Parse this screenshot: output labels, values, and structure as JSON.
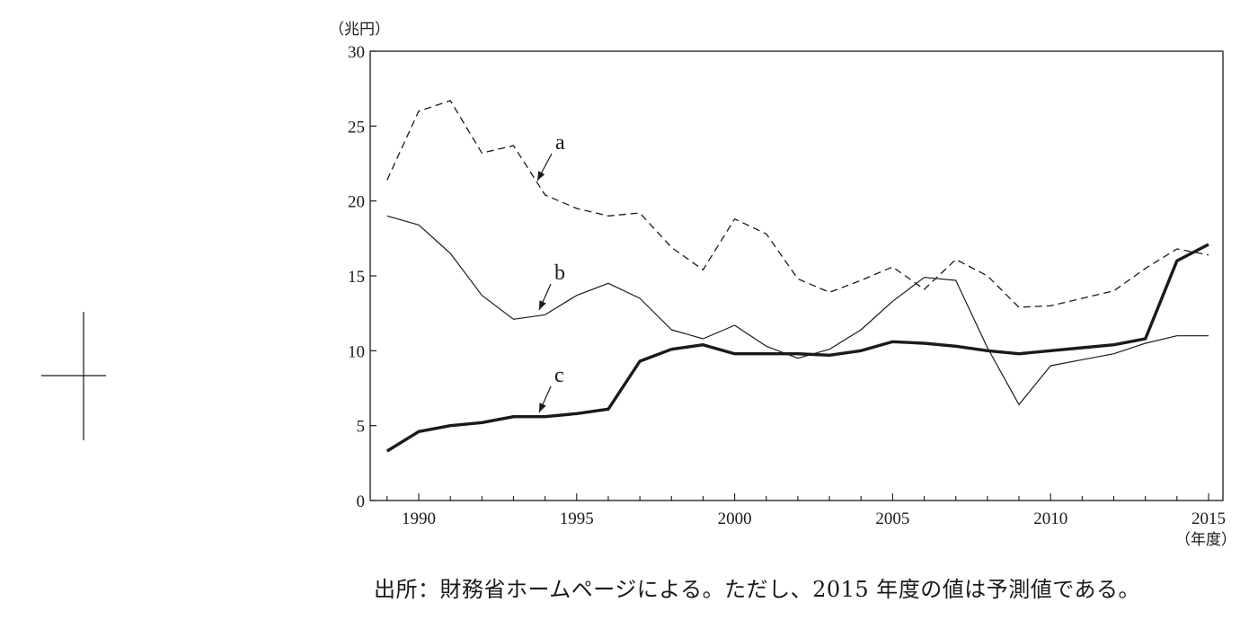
{
  "chart_data": {
    "type": "line",
    "y_unit": "（兆円）",
    "x_unit": "（年度）",
    "x_ticks": [
      1990,
      1995,
      2000,
      2005,
      2010,
      2015
    ],
    "y_ticks": [
      0,
      5,
      10,
      15,
      20,
      25,
      30
    ],
    "xlim": [
      1988.5,
      2015.5
    ],
    "ylim": [
      0,
      30
    ],
    "grid": false,
    "series": [
      {
        "name": "a",
        "style": "dashed",
        "x": [
          1989,
          1990,
          1991,
          1992,
          1993,
          1994,
          1995,
          1996,
          1997,
          1998,
          1999,
          2000,
          2001,
          2002,
          2003,
          2004,
          2005,
          2006,
          2007,
          2008,
          2009,
          2010,
          2011,
          2012,
          2013,
          2014,
          2015
        ],
        "values": [
          21.4,
          26.0,
          26.7,
          23.2,
          23.7,
          20.4,
          19.5,
          19.0,
          19.2,
          16.9,
          15.4,
          18.8,
          17.8,
          14.8,
          13.9,
          14.7,
          15.6,
          14.1,
          16.1,
          15.0,
          12.9,
          13.0,
          13.5,
          14.0,
          15.5,
          16.8,
          16.4
        ]
      },
      {
        "name": "b",
        "style": "thin",
        "x": [
          1989,
          1990,
          1991,
          1992,
          1993,
          1994,
          1995,
          1996,
          1997,
          1998,
          1999,
          2000,
          2001,
          2002,
          2003,
          2004,
          2005,
          2006,
          2007,
          2008,
          2009,
          2010,
          2011,
          2012,
          2013,
          2014,
          2015
        ],
        "values": [
          19.0,
          18.4,
          16.5,
          13.7,
          12.1,
          12.4,
          13.7,
          14.5,
          13.5,
          11.4,
          10.8,
          11.7,
          10.3,
          9.5,
          10.1,
          11.4,
          13.3,
          14.9,
          14.7,
          10.2,
          6.4,
          9.0,
          9.4,
          9.8,
          10.5,
          11.0,
          11.0
        ]
      },
      {
        "name": "c",
        "style": "thick",
        "x": [
          1989,
          1990,
          1991,
          1992,
          1993,
          1994,
          1995,
          1996,
          1997,
          1998,
          1999,
          2000,
          2001,
          2002,
          2003,
          2004,
          2005,
          2006,
          2007,
          2008,
          2009,
          2010,
          2011,
          2012,
          2013,
          2014,
          2015
        ],
        "values": [
          3.3,
          4.6,
          5.0,
          5.2,
          5.6,
          5.6,
          5.8,
          6.1,
          9.3,
          10.1,
          10.4,
          9.8,
          9.8,
          9.8,
          9.7,
          10.0,
          10.6,
          10.5,
          10.3,
          10.0,
          9.8,
          10.0,
          10.2,
          10.4,
          10.8,
          16.0,
          17.1
        ]
      }
    ]
  },
  "source_note": "出所：財務省ホームページによる。ただし、2015 年度の値は予測値である。",
  "colors": {
    "line": "#1a1a1a",
    "background": "#ffffff"
  }
}
